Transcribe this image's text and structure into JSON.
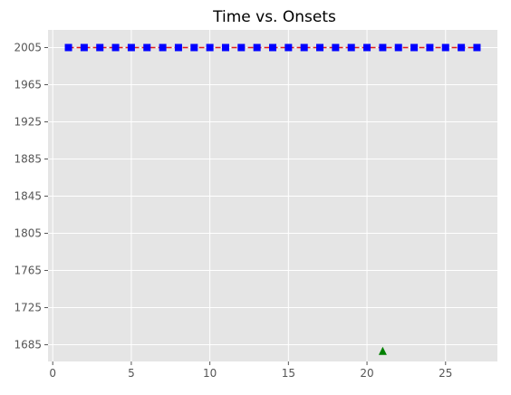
{
  "chart_data": {
    "type": "line",
    "title": "Time vs. Onsets",
    "xlabel": "",
    "ylabel": "",
    "xlim": [
      -0.3,
      28.3
    ],
    "ylim": [
      1667,
      2024
    ],
    "x_ticks": [
      0,
      5,
      10,
      15,
      20,
      25
    ],
    "y_ticks": [
      1685,
      1725,
      1765,
      1805,
      1845,
      1885,
      1925,
      1965,
      2005
    ],
    "grid": true,
    "legend": "none",
    "series": [
      {
        "style": "dashed-line",
        "color": "#e41a1c",
        "x": [
          1,
          27
        ],
        "y": [
          2005,
          2005
        ]
      },
      {
        "style": "square-markers",
        "color": "#0000ff",
        "x": [
          1,
          2,
          3,
          4,
          5,
          6,
          7,
          8,
          9,
          10,
          11,
          12,
          13,
          14,
          15,
          16,
          17,
          18,
          19,
          20,
          21,
          22,
          23,
          24,
          25,
          26,
          27
        ],
        "y": [
          2005,
          2005,
          2005,
          2005,
          2005,
          2005,
          2005,
          2005,
          2005,
          2005,
          2005,
          2005,
          2005,
          2005,
          2005,
          2005,
          2005,
          2005,
          2005,
          2005,
          2005,
          2005,
          2005,
          2005,
          2005,
          2005,
          2005
        ]
      },
      {
        "style": "triangle-marker",
        "color": "#008000",
        "x": [
          21
        ],
        "y": [
          1678
        ]
      }
    ]
  }
}
